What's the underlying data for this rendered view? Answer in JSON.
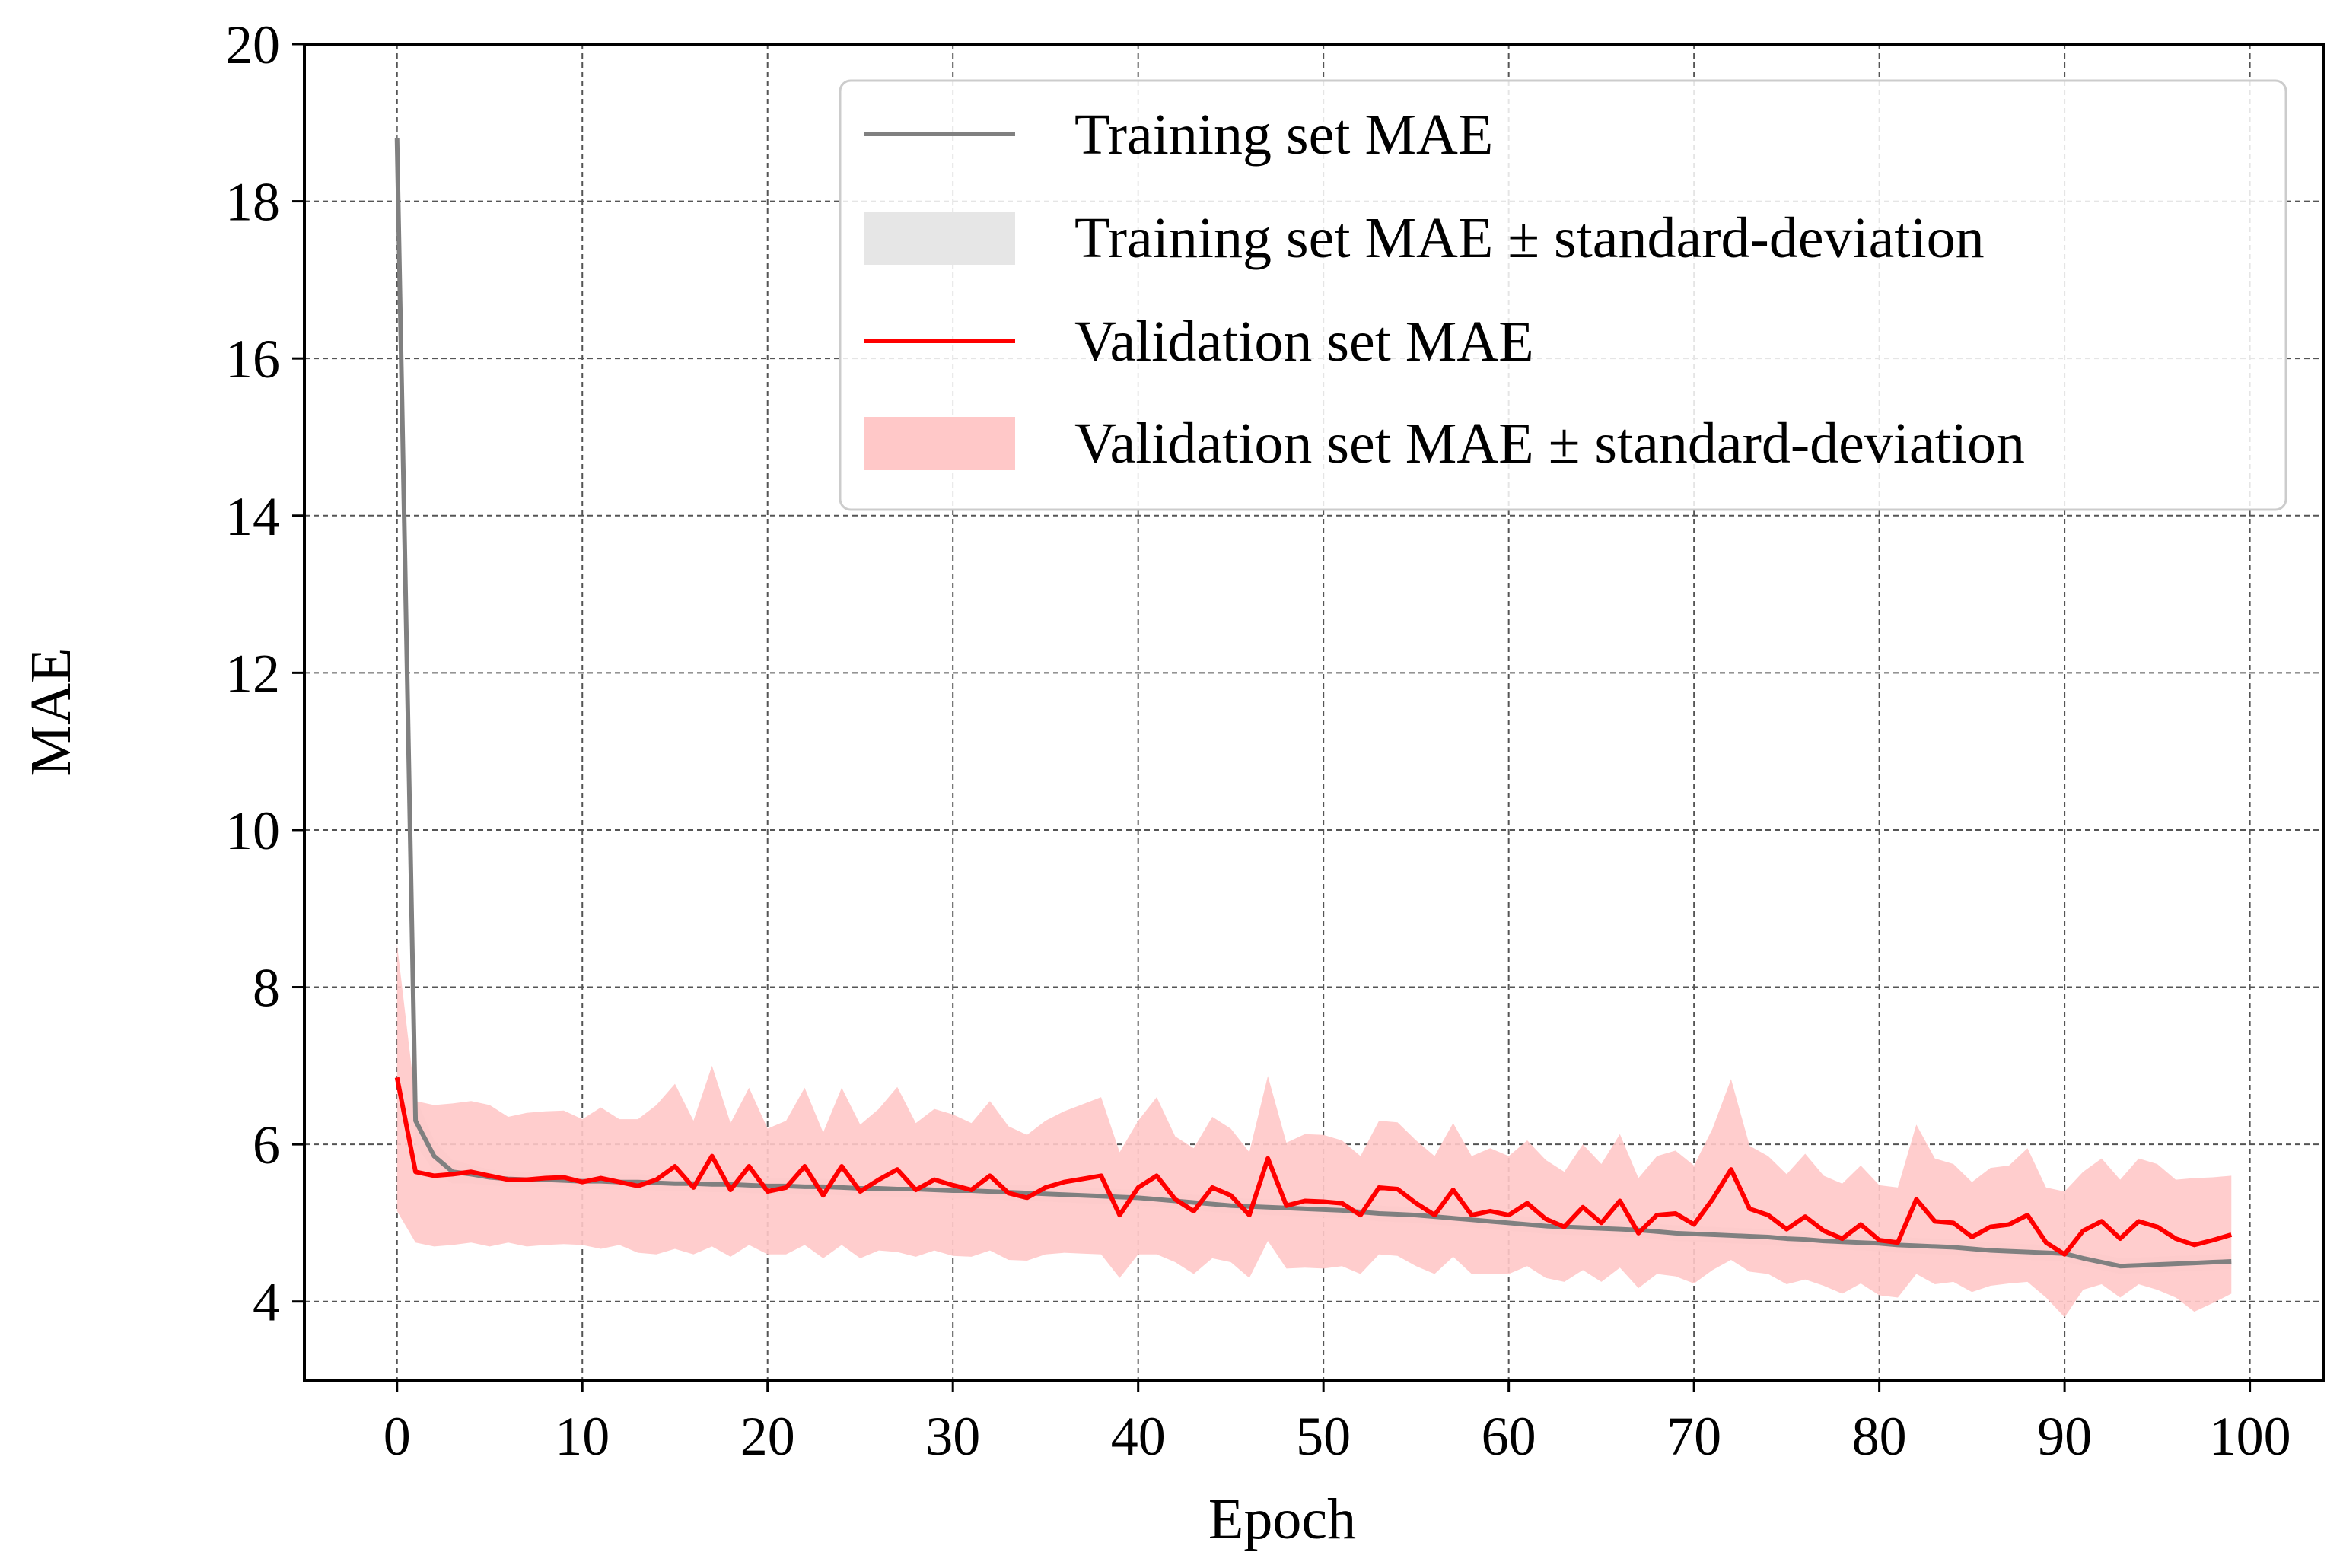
{
  "chart_data": {
    "type": "line",
    "title": "",
    "xlabel": "Epoch",
    "ylabel": "MAE",
    "xlim": [
      -5,
      104
    ],
    "ylim": [
      3.0,
      20.0
    ],
    "xticks": [
      0,
      10,
      20,
      30,
      40,
      50,
      60,
      70,
      80,
      90,
      100
    ],
    "yticks": [
      4,
      6,
      8,
      10,
      12,
      14,
      16,
      18,
      20
    ],
    "grid": true,
    "legend_position": "top-right",
    "legend": [
      {
        "label": "Training set MAE",
        "kind": "line",
        "color": "#808080"
      },
      {
        "label": "Training set MAE ± standard-deviation",
        "kind": "band",
        "color": "#e6e6e6"
      },
      {
        "label": "Validation set MAE",
        "kind": "line",
        "color": "#ff0000"
      },
      {
        "label": "Validation set MAE ± standard-deviation",
        "kind": "band",
        "color": "#ffc8c8"
      }
    ],
    "epochs": [
      0,
      1,
      2,
      3,
      4,
      5,
      6,
      7,
      8,
      9,
      10,
      11,
      12,
      13,
      14,
      15,
      16,
      17,
      18,
      19,
      20,
      21,
      22,
      23,
      24,
      25,
      26,
      27,
      28,
      29,
      30,
      31,
      32,
      33,
      34,
      35,
      36,
      37,
      38,
      39,
      40,
      41,
      42,
      43,
      44,
      45,
      46,
      47,
      48,
      49,
      50,
      51,
      52,
      53,
      54,
      55,
      56,
      57,
      58,
      59,
      60,
      61,
      62,
      63,
      64,
      65,
      66,
      67,
      68,
      69,
      70,
      71,
      72,
      73,
      74,
      75,
      76,
      77,
      78,
      79,
      80,
      81,
      82,
      83,
      84,
      85,
      86,
      87,
      88,
      89,
      90,
      91,
      92,
      93,
      94,
      95,
      96,
      97,
      98,
      99
    ],
    "series": [
      {
        "name": "Training set MAE",
        "color": "#808080",
        "values": [
          18.8,
          6.3,
          5.85,
          5.65,
          5.62,
          5.58,
          5.56,
          5.55,
          5.55,
          5.54,
          5.53,
          5.53,
          5.52,
          5.52,
          5.51,
          5.5,
          5.5,
          5.49,
          5.49,
          5.48,
          5.47,
          5.47,
          5.46,
          5.46,
          5.45,
          5.44,
          5.44,
          5.43,
          5.43,
          5.42,
          5.41,
          5.41,
          5.4,
          5.39,
          5.38,
          5.37,
          5.36,
          5.35,
          5.34,
          5.33,
          5.32,
          5.3,
          5.28,
          5.26,
          5.24,
          5.22,
          5.21,
          5.2,
          5.19,
          5.18,
          5.17,
          5.16,
          5.14,
          5.12,
          5.11,
          5.1,
          5.08,
          5.06,
          5.04,
          5.02,
          5.0,
          4.98,
          4.96,
          4.95,
          4.94,
          4.93,
          4.92,
          4.91,
          4.89,
          4.87,
          4.86,
          4.85,
          4.84,
          4.83,
          4.82,
          4.8,
          4.79,
          4.77,
          4.76,
          4.75,
          4.74,
          4.72,
          4.71,
          4.7,
          4.69,
          4.67,
          4.65,
          4.64,
          4.63,
          4.62,
          4.61,
          4.55,
          4.5,
          4.45,
          4.46,
          4.47,
          4.48,
          4.49,
          4.5,
          4.51
        ],
        "std": [
          0.3,
          0.3,
          0.2,
          0.15,
          0.12,
          0.1,
          0.1,
          0.1,
          0.1,
          0.1,
          0.1,
          0.1,
          0.1,
          0.1,
          0.1,
          0.1,
          0.1,
          0.1,
          0.1,
          0.1,
          0.1,
          0.1,
          0.1,
          0.1,
          0.1,
          0.1,
          0.1,
          0.1,
          0.1,
          0.1,
          0.1,
          0.1,
          0.1,
          0.1,
          0.1,
          0.1,
          0.1,
          0.1,
          0.1,
          0.1,
          0.1,
          0.1,
          0.1,
          0.1,
          0.1,
          0.1,
          0.1,
          0.1,
          0.1,
          0.1,
          0.1,
          0.1,
          0.1,
          0.1,
          0.1,
          0.1,
          0.1,
          0.1,
          0.1,
          0.1,
          0.1,
          0.1,
          0.1,
          0.1,
          0.1,
          0.1,
          0.1,
          0.1,
          0.1,
          0.1,
          0.1,
          0.1,
          0.1,
          0.1,
          0.1,
          0.1,
          0.1,
          0.1,
          0.1,
          0.1,
          0.1,
          0.1,
          0.1,
          0.1,
          0.1,
          0.1,
          0.1,
          0.1,
          0.1,
          0.1,
          0.1,
          0.1,
          0.1,
          0.1,
          0.1,
          0.1,
          0.1,
          0.1,
          0.1,
          0.1
        ]
      },
      {
        "name": "Validation set MAE",
        "color": "#ff0000",
        "values": [
          6.85,
          5.65,
          5.6,
          5.62,
          5.65,
          5.6,
          5.55,
          5.55,
          5.57,
          5.58,
          5.52,
          5.57,
          5.52,
          5.47,
          5.55,
          5.72,
          5.45,
          5.85,
          5.42,
          5.72,
          5.4,
          5.45,
          5.72,
          5.35,
          5.72,
          5.4,
          5.55,
          5.68,
          5.42,
          5.55,
          5.48,
          5.42,
          5.6,
          5.38,
          5.32,
          5.45,
          5.52,
          5.56,
          5.6,
          5.1,
          5.45,
          5.6,
          5.3,
          5.15,
          5.45,
          5.35,
          5.1,
          5.82,
          5.22,
          5.28,
          5.27,
          5.25,
          5.1,
          5.45,
          5.43,
          5.25,
          5.1,
          5.42,
          5.1,
          5.15,
          5.1,
          5.25,
          5.05,
          4.95,
          5.2,
          5.0,
          5.28,
          4.87,
          5.1,
          5.12,
          4.98,
          5.3,
          5.68,
          5.18,
          5.1,
          4.92,
          5.08,
          4.9,
          4.8,
          4.98,
          4.78,
          4.75,
          5.3,
          5.02,
          5.0,
          4.82,
          4.95,
          4.98,
          5.1,
          4.75,
          4.6,
          4.9,
          5.02,
          4.8,
          5.02,
          4.95,
          4.8,
          4.72,
          4.78,
          4.85
        ],
        "std": [
          1.7,
          0.9,
          0.9,
          0.9,
          0.9,
          0.9,
          0.8,
          0.85,
          0.85,
          0.85,
          0.8,
          0.9,
          0.8,
          0.85,
          0.95,
          1.05,
          0.85,
          1.15,
          0.85,
          1.0,
          0.8,
          0.85,
          1.0,
          0.8,
          1.0,
          0.85,
          0.9,
          1.05,
          0.85,
          0.9,
          0.9,
          0.85,
          0.95,
          0.85,
          0.8,
          0.85,
          0.9,
          0.95,
          1.0,
          0.8,
          0.85,
          1.0,
          0.8,
          0.8,
          0.9,
          0.85,
          0.8,
          1.05,
          0.8,
          0.85,
          0.85,
          0.8,
          0.75,
          0.85,
          0.85,
          0.8,
          0.75,
          0.85,
          0.75,
          0.8,
          0.75,
          0.8,
          0.75,
          0.7,
          0.8,
          0.75,
          0.85,
          0.7,
          0.75,
          0.8,
          0.75,
          0.9,
          1.15,
          0.8,
          0.75,
          0.7,
          0.8,
          0.7,
          0.7,
          0.75,
          0.7,
          0.7,
          0.95,
          0.8,
          0.75,
          0.7,
          0.75,
          0.75,
          0.85,
          0.7,
          0.8,
          0.75,
          0.8,
          0.75,
          0.8,
          0.8,
          0.75,
          0.85,
          0.8,
          0.75
        ]
      }
    ]
  }
}
